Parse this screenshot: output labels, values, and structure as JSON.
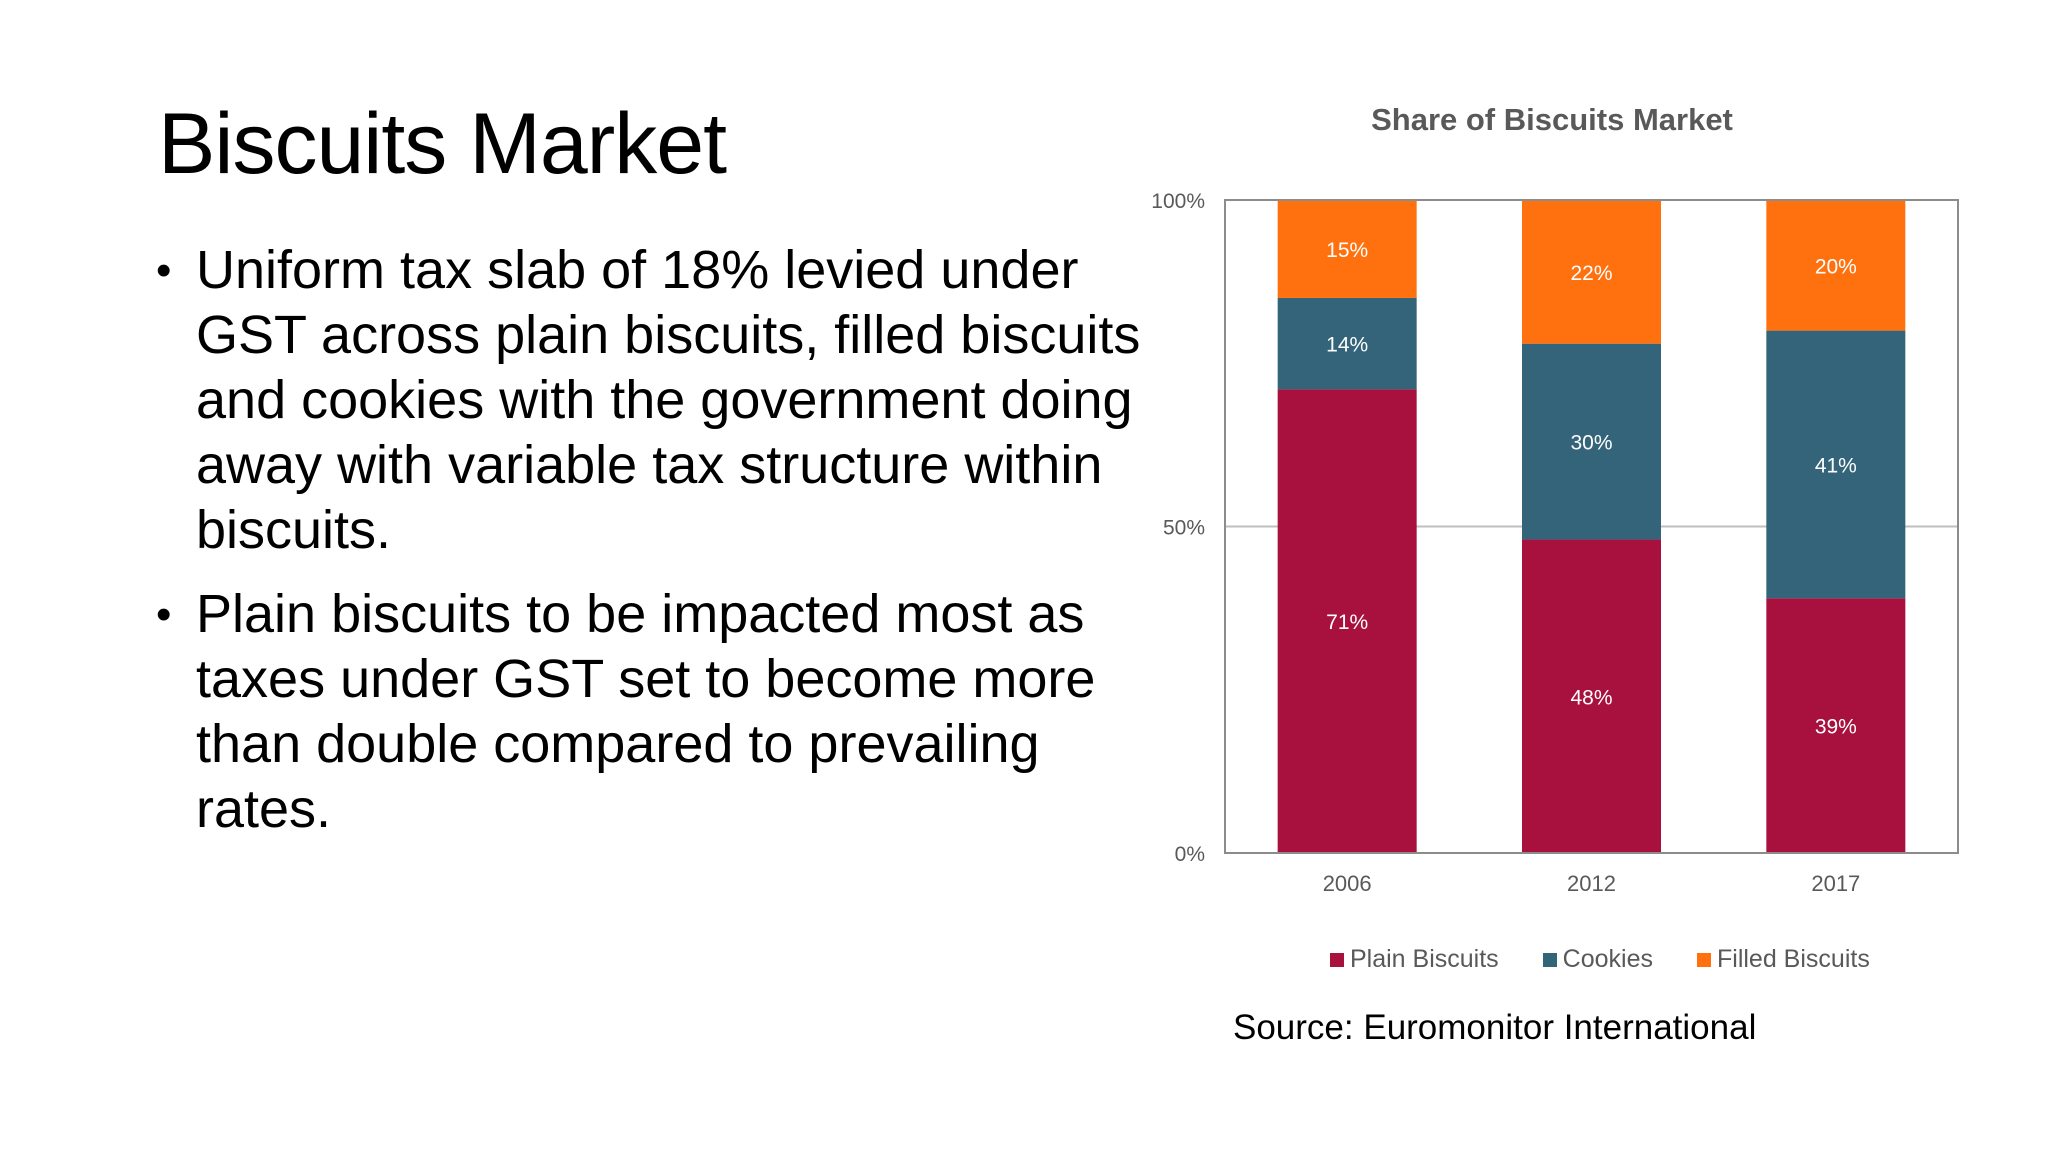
{
  "slide": {
    "title": "Biscuits Market",
    "bullets": [
      "Uniform tax slab of 18% levied under GST across plain biscuits, filled biscuits and cookies with the government doing away with variable tax structure within biscuits.",
      "Plain biscuits to be impacted most as taxes under GST set to become more than double compared to prevailing rates."
    ],
    "bullet_symbol": "•",
    "source": "Source: Euromonitor International"
  },
  "chart_data": {
    "type": "bar",
    "stacked": true,
    "title": "Share of Biscuits Market",
    "xlabel": "",
    "ylabel": "",
    "categories": [
      "2006",
      "2012",
      "2017"
    ],
    "series": [
      {
        "name": "Plain Biscuits",
        "color": "#a8103e",
        "values": [
          71,
          48,
          39
        ],
        "labels": [
          "71%",
          "48%",
          "39%"
        ]
      },
      {
        "name": "Cookies",
        "color": "#336479",
        "values": [
          14,
          30,
          41
        ],
        "labels": [
          "14%",
          "30%",
          "41%"
        ]
      },
      {
        "name": "Filled Biscuits",
        "color": "#ff710f",
        "values": [
          15,
          22,
          20
        ],
        "labels": [
          "15%",
          "22%",
          "20%"
        ]
      }
    ],
    "ylim": [
      0,
      100
    ],
    "yticks": [
      0,
      50,
      100
    ],
    "ytick_labels": [
      "0%",
      "50%",
      "100%"
    ],
    "grid": true,
    "legend_position": "bottom"
  }
}
